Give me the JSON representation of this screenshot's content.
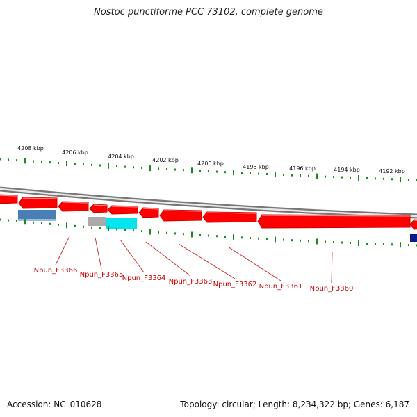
{
  "title": "Nostoc punctiforme PCC 73102, complete genome",
  "ticks": [
    {
      "pos": "4208",
      "label": "4208 kbp"
    },
    {
      "pos": "4206",
      "label": "4206 kbp"
    },
    {
      "pos": "4204",
      "label": "4204 kbp"
    },
    {
      "pos": "4202",
      "label": "4202 kbp"
    },
    {
      "pos": "4200",
      "label": "4200 kbp"
    },
    {
      "pos": "4198",
      "label": "4198 kbp"
    },
    {
      "pos": "4196",
      "label": "4196 kbp"
    },
    {
      "pos": "4194",
      "label": "4194 kbp"
    },
    {
      "pos": "4192",
      "label": "4192 kbp"
    }
  ],
  "gene_labels": [
    {
      "name": "Npun_F3366"
    },
    {
      "name": "Npun_F3365"
    },
    {
      "name": "Npun_F3364"
    },
    {
      "name": "Npun_F3363"
    },
    {
      "name": "Npun_F3362"
    },
    {
      "name": "Npun_F3361"
    },
    {
      "name": "Npun_F3360"
    }
  ],
  "colors": {
    "backbone": "#888888",
    "gene": "#ff0000",
    "gene_edge": "#cc0000",
    "tick": "#1a8a1a",
    "label_line": "#cc2222",
    "label_text": "#cc0000",
    "feature_steelblue": "#4a7fb5",
    "feature_gray": "#aaaaaa",
    "feature_cyan": "#00e5ee",
    "feature_navy": "#0a1a8c"
  },
  "footer": {
    "accession": "Accession: NC_010628",
    "summary": "Topology: circular; Length: 8,234,322 bp; Genes: 6,187"
  }
}
